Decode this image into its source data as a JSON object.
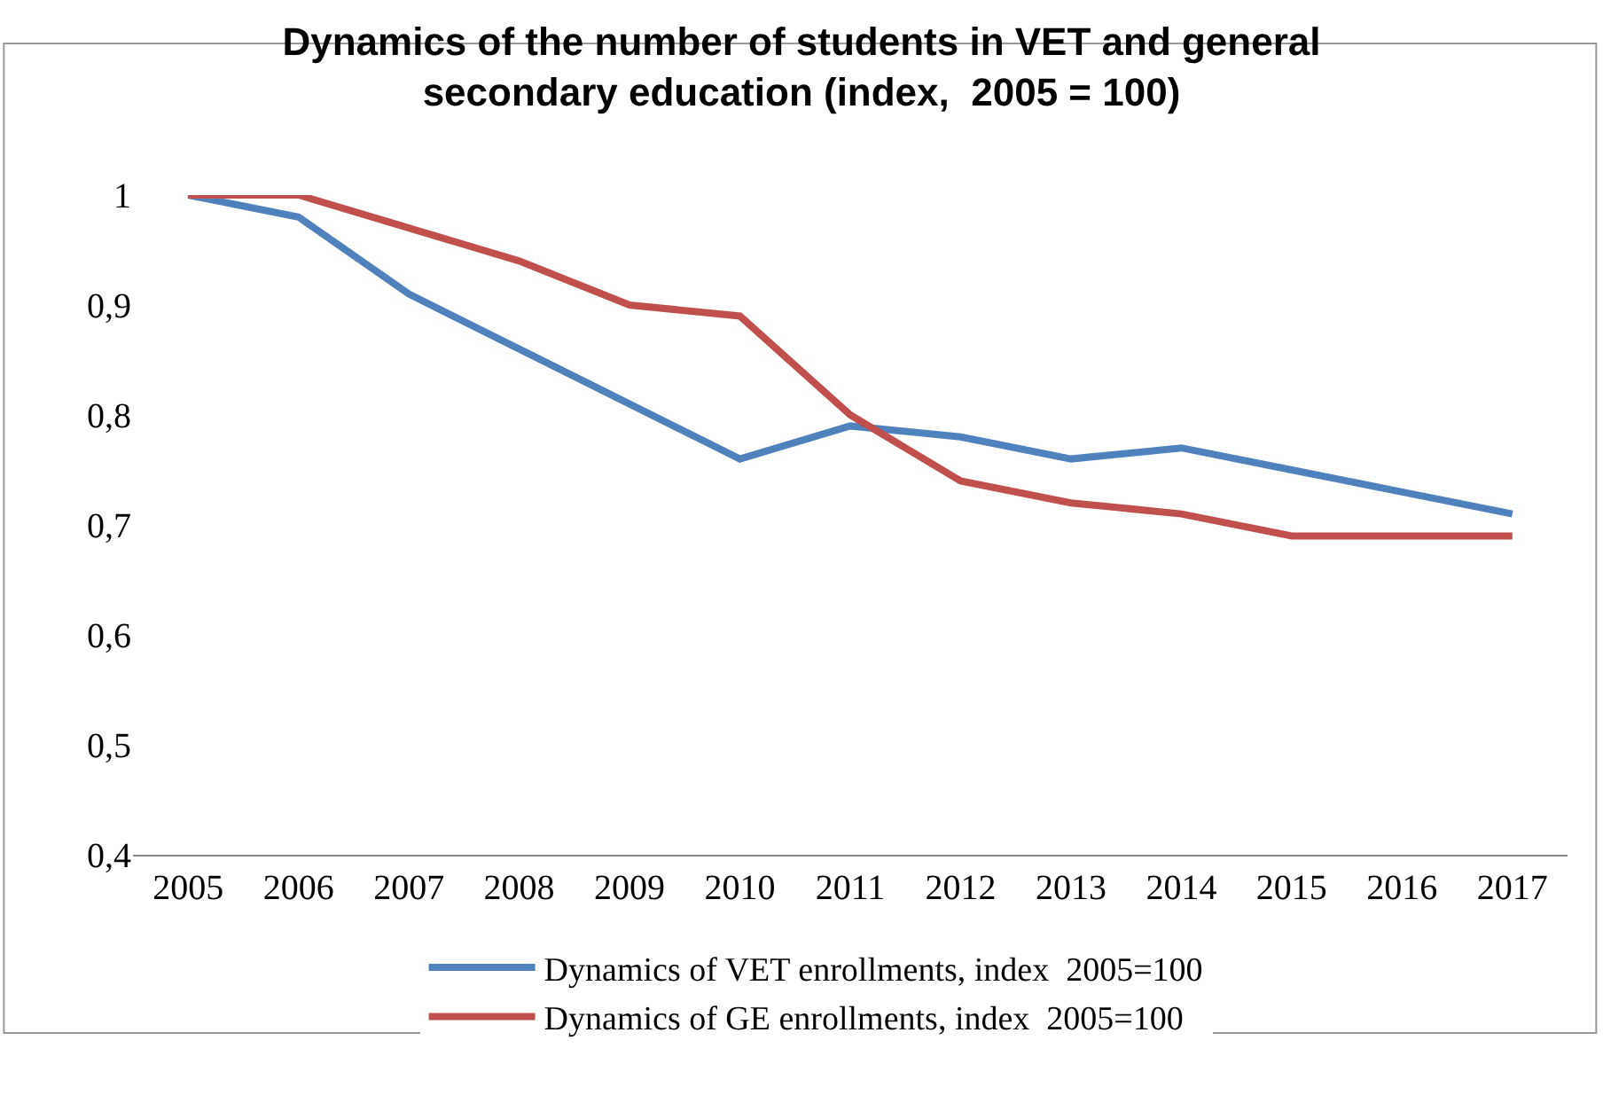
{
  "chart_data": {
    "type": "line",
    "title": "Dynamics of the number of students in VET and general secondary education (index,  2005 = 100)",
    "categories": [
      "2005",
      "2006",
      "2007",
      "2008",
      "2009",
      "2010",
      "2011",
      "2012",
      "2013",
      "2014",
      "2015",
      "2016",
      "2017"
    ],
    "series": [
      {
        "name": "Dynamics of VET enrollments, index  2005=100",
        "color": "#4f81bd",
        "values": [
          1.0,
          0.98,
          0.91,
          0.86,
          0.81,
          0.76,
          0.79,
          0.78,
          0.76,
          0.77,
          0.75,
          0.73,
          0.71
        ]
      },
      {
        "name": "Dynamics of GE enrollments, index  2005=100",
        "color": "#c0504d",
        "values": [
          1.0,
          1.0,
          0.97,
          0.94,
          0.9,
          0.89,
          0.8,
          0.74,
          0.72,
          0.71,
          0.69,
          0.69,
          0.69
        ]
      }
    ],
    "ylim": [
      0.4,
      1
    ],
    "yticks": [
      {
        "value": 0.4,
        "label": "0,4"
      },
      {
        "value": 0.5,
        "label": "0,5"
      },
      {
        "value": 0.6,
        "label": "0,6"
      },
      {
        "value": 0.7,
        "label": "0,7"
      },
      {
        "value": 0.8,
        "label": "0,8"
      },
      {
        "value": 0.9,
        "label": "0,9"
      },
      {
        "value": 1,
        "label": "1"
      }
    ],
    "grid": false,
    "legend": "bottom",
    "marker": "none",
    "line_style": "solid"
  }
}
